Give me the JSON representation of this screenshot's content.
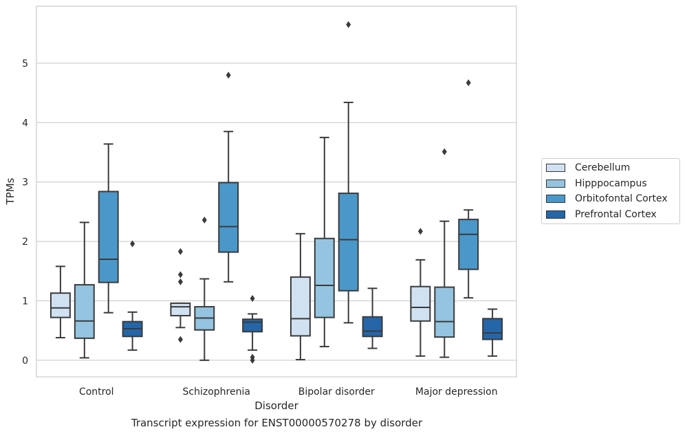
{
  "chart_data": {
    "type": "box",
    "title": "",
    "caption": "Transcript expression for ENST00000570278 by disorder",
    "xlabel": "Disorder",
    "ylabel": "TPMs",
    "categories": [
      "Control",
      "Schizophrenia",
      "Bipolar disorder",
      "Major depression"
    ],
    "ylim": [
      -0.28,
      5.96
    ],
    "yticks": [
      "0",
      "1",
      "2",
      "3",
      "4",
      "5"
    ],
    "grid": "horizontal",
    "legend_position": "right",
    "series": [
      {
        "name": "Cerebellum",
        "color": "#d0e1f2",
        "boxes": [
          {
            "whisker_low": 0.38,
            "q1": 0.72,
            "median": 0.88,
            "q3": 1.13,
            "whisker_high": 1.58,
            "outliers": []
          },
          {
            "whisker_low": 0.55,
            "q1": 0.75,
            "median": 0.9,
            "q3": 0.96,
            "whisker_high": 0.96,
            "outliers": [
              1.83,
              1.44,
              1.32,
              0.35
            ]
          },
          {
            "whisker_low": 0.01,
            "q1": 0.41,
            "median": 0.7,
            "q3": 1.4,
            "whisker_high": 2.13,
            "outliers": []
          },
          {
            "whisker_low": 0.07,
            "q1": 0.66,
            "median": 0.89,
            "q3": 1.24,
            "whisker_high": 1.69,
            "outliers": [
              2.17
            ]
          }
        ]
      },
      {
        "name": "Hipppocampus",
        "color": "#94c4df",
        "boxes": [
          {
            "whisker_low": 0.04,
            "q1": 0.37,
            "median": 0.66,
            "q3": 1.27,
            "whisker_high": 2.32,
            "outliers": []
          },
          {
            "whisker_low": 0.0,
            "q1": 0.51,
            "median": 0.71,
            "q3": 0.9,
            "whisker_high": 1.37,
            "outliers": [
              2.36
            ]
          },
          {
            "whisker_low": 0.23,
            "q1": 0.72,
            "median": 1.26,
            "q3": 2.05,
            "whisker_high": 3.75,
            "outliers": []
          },
          {
            "whisker_low": 0.05,
            "q1": 0.39,
            "median": 0.65,
            "q3": 1.23,
            "whisker_high": 2.34,
            "outliers": [
              3.51
            ]
          }
        ]
      },
      {
        "name": "Orbitofontal Cortex",
        "color": "#4a98c9",
        "boxes": [
          {
            "whisker_low": 0.8,
            "q1": 1.31,
            "median": 1.7,
            "q3": 2.84,
            "whisker_high": 3.64,
            "outliers": []
          },
          {
            "whisker_low": 1.32,
            "q1": 1.82,
            "median": 2.25,
            "q3": 2.99,
            "whisker_high": 3.85,
            "outliers": [
              4.8
            ]
          },
          {
            "whisker_low": 0.63,
            "q1": 1.17,
            "median": 2.03,
            "q3": 2.81,
            "whisker_high": 4.34,
            "outliers": [
              5.65
            ]
          },
          {
            "whisker_low": 1.05,
            "q1": 1.53,
            "median": 2.12,
            "q3": 2.37,
            "whisker_high": 2.53,
            "outliers": [
              4.67
            ]
          }
        ]
      },
      {
        "name": "Prefrontal Cortex",
        "color": "#2566a8",
        "boxes": [
          {
            "whisker_low": 0.17,
            "q1": 0.4,
            "median": 0.53,
            "q3": 0.65,
            "whisker_high": 0.81,
            "outliers": [
              1.96
            ]
          },
          {
            "whisker_low": 0.17,
            "q1": 0.48,
            "median": 0.64,
            "q3": 0.69,
            "whisker_high": 0.78,
            "outliers": [
              1.04,
              0.05,
              0.0
            ]
          },
          {
            "whisker_low": 0.2,
            "q1": 0.4,
            "median": 0.49,
            "q3": 0.73,
            "whisker_high": 1.21,
            "outliers": []
          },
          {
            "whisker_low": 0.07,
            "q1": 0.35,
            "median": 0.46,
            "q3": 0.7,
            "whisker_high": 0.86,
            "outliers": []
          }
        ]
      }
    ]
  }
}
